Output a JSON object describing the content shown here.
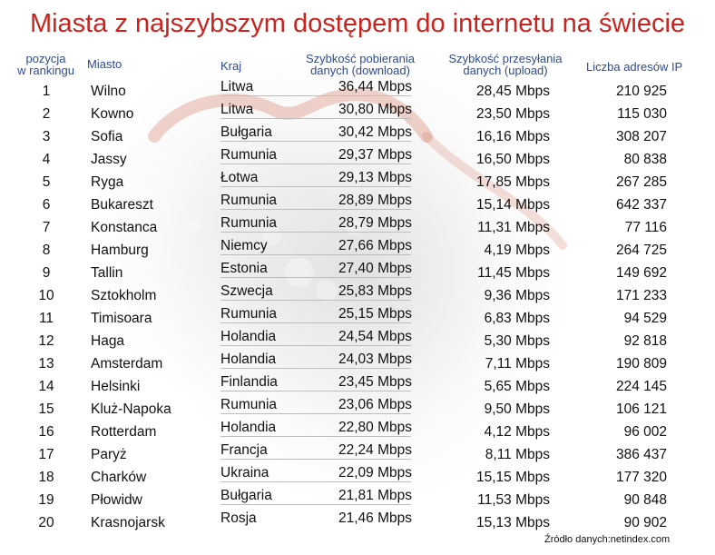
{
  "title": "Miasta z najszybszym dostępem do internetu na świecie",
  "headers": {
    "position": [
      "pozycja",
      "w rankingu"
    ],
    "city": "Miasto",
    "country": "Kraj",
    "download": [
      "Szybkość pobierania",
      "danych (download)"
    ],
    "upload": [
      "Szybkość przesyłania",
      "danych (upload)"
    ],
    "ip": "Liczba adresów IP"
  },
  "rows": [
    {
      "pos": "1",
      "city": "Wilno",
      "country": "Litwa",
      "down": "36,44 Mbps",
      "up": "28,45 Mbps",
      "ip": "210 925"
    },
    {
      "pos": "2",
      "city": "Kowno",
      "country": "Litwa",
      "down": "30,80 Mbps",
      "up": "23,50 Mbps",
      "ip": "115 030"
    },
    {
      "pos": "3",
      "city": "Sofia",
      "country": "Bułgaria",
      "down": "30,42 Mbps",
      "up": "16,16 Mbps",
      "ip": "308 207"
    },
    {
      "pos": "4",
      "city": "Jassy",
      "country": "Rumunia",
      "down": "29,37 Mbps",
      "up": "16,50 Mbps",
      "ip": "80 838"
    },
    {
      "pos": "5",
      "city": "Ryga",
      "country": "Łotwa",
      "down": "29,13 Mbps",
      "up": "17,85 Mbps",
      "ip": "267 285"
    },
    {
      "pos": "6",
      "city": "Bukareszt",
      "country": "Rumunia",
      "down": "28,89 Mbps",
      "up": "15,14 Mbps",
      "ip": "642 337"
    },
    {
      "pos": "7",
      "city": "Konstanca",
      "country": "Rumunia",
      "down": "28,79 Mbps",
      "up": "11,31 Mbps",
      "ip": "77 116"
    },
    {
      "pos": "8",
      "city": "Hamburg",
      "country": "Niemcy",
      "down": "27,66 Mbps",
      "up": "4,19 Mbps",
      "ip": "264 725"
    },
    {
      "pos": "9",
      "city": "Tallin",
      "country": "Estonia",
      "down": "27,40 Mbps",
      "up": "11,45 Mbps",
      "ip": "149 692"
    },
    {
      "pos": "10",
      "city": "Sztokholm",
      "country": "Szwecja",
      "down": "25,83 Mbps",
      "up": "9,36 Mbps",
      "ip": "171 233"
    },
    {
      "pos": "11",
      "city": "Timisoara",
      "country": "Rumunia",
      "down": "25,15 Mbps",
      "up": "6,83 Mbps",
      "ip": "94 529"
    },
    {
      "pos": "12",
      "city": "Haga",
      "country": "Holandia",
      "down": "24,54 Mbps",
      "up": "5,30 Mbps",
      "ip": "92 818"
    },
    {
      "pos": "13",
      "city": "Amsterdam",
      "country": "Holandia",
      "down": "24,03 Mbps",
      "up": "7,11 Mbps",
      "ip": "190 809"
    },
    {
      "pos": "14",
      "city": "Helsinki",
      "country": "Finlandia",
      "down": "23,45 Mbps",
      "up": "5,65 Mbps",
      "ip": "224 145"
    },
    {
      "pos": "15",
      "city": "Kluż-Napoka",
      "country": "Rumunia",
      "down": "23,06 Mbps",
      "up": "9,50 Mbps",
      "ip": "106 121"
    },
    {
      "pos": "16",
      "city": "Rotterdam",
      "country": "Holandia",
      "down": "22,80 Mbps",
      "up": "4,12 Mbps",
      "ip": "96 002"
    },
    {
      "pos": "17",
      "city": "Paryż",
      "country": "Francja",
      "down": "22,24 Mbps",
      "up": "8,11 Mbps",
      "ip": "386 437"
    },
    {
      "pos": "18",
      "city": "Charków",
      "country": "Ukraina",
      "down": "22,09 Mbps",
      "up": "15,15 Mbps",
      "ip": "177 320"
    },
    {
      "pos": "19",
      "city": "Płowidw",
      "country": "Bułgaria",
      "down": "21,81 Mbps",
      "up": "11,53 Mbps",
      "ip": "90 848"
    },
    {
      "pos": "20",
      "city": "Krasnojarsk",
      "country": "Rosja",
      "down": "21,46 Mbps",
      "up": "15,13 Mbps",
      "ip": "90 902"
    }
  ],
  "source": "Źródło danych:netindex.com",
  "colors": {
    "title": "#c8241f",
    "header": "#2f4b8e",
    "text": "#111111"
  }
}
